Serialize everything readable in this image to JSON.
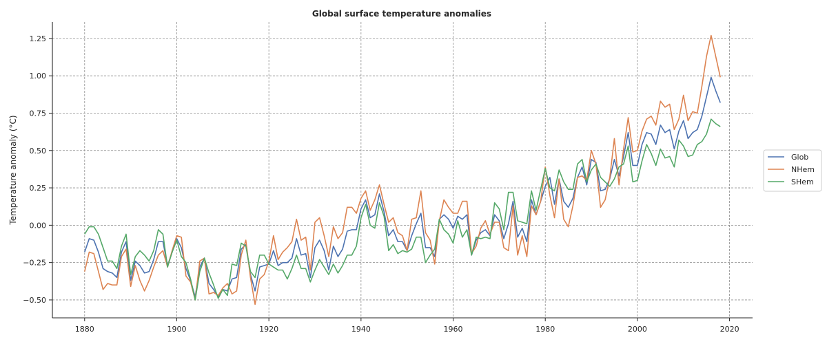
{
  "chart_data": {
    "type": "line",
    "title": "Global surface temperature anomalies",
    "xlabel": "",
    "ylabel": "Temperature anomaly (°C)",
    "xlim": [
      1873,
      2025
    ],
    "ylim": [
      -0.62,
      1.36
    ],
    "xticks": [
      1880,
      1900,
      1920,
      1940,
      1960,
      1980,
      2000,
      2020
    ],
    "yticks": [
      -0.5,
      -0.25,
      0.0,
      0.25,
      0.5,
      0.75,
      1.0,
      1.25
    ],
    "ytick_labels": [
      "−0.50",
      "−0.25",
      "0.00",
      "0.25",
      "0.50",
      "0.75",
      "1.00",
      "1.25"
    ],
    "grid": true,
    "legend_position": "right",
    "x_start": 1880,
    "series": [
      {
        "name": "Glob",
        "color": "#4c72b0",
        "values": [
          -0.18,
          -0.09,
          -0.1,
          -0.18,
          -0.29,
          -0.31,
          -0.32,
          -0.35,
          -0.18,
          -0.11,
          -0.37,
          -0.24,
          -0.27,
          -0.32,
          -0.31,
          -0.23,
          -0.11,
          -0.11,
          -0.27,
          -0.18,
          -0.09,
          -0.15,
          -0.29,
          -0.37,
          -0.48,
          -0.28,
          -0.22,
          -0.39,
          -0.43,
          -0.48,
          -0.43,
          -0.44,
          -0.36,
          -0.35,
          -0.16,
          -0.13,
          -0.33,
          -0.44,
          -0.28,
          -0.27,
          -0.26,
          -0.17,
          -0.27,
          -0.25,
          -0.25,
          -0.22,
          -0.09,
          -0.2,
          -0.19,
          -0.35,
          -0.15,
          -0.1,
          -0.17,
          -0.3,
          -0.14,
          -0.21,
          -0.16,
          -0.04,
          -0.03,
          -0.03,
          0.11,
          0.17,
          0.05,
          0.07,
          0.21,
          0.09,
          -0.07,
          -0.03,
          -0.11,
          -0.11,
          -0.17,
          -0.07,
          0.01,
          0.08,
          -0.15,
          -0.15,
          -0.21,
          0.04,
          0.07,
          0.04,
          -0.02,
          0.06,
          0.04,
          0.07,
          -0.2,
          -0.1,
          -0.05,
          -0.03,
          -0.07,
          0.07,
          0.03,
          -0.09,
          0.01,
          0.16,
          -0.08,
          -0.02,
          -0.11,
          0.17,
          0.07,
          0.16,
          0.26,
          0.32,
          0.14,
          0.31,
          0.16,
          0.12,
          0.18,
          0.32,
          0.39,
          0.27,
          0.44,
          0.42,
          0.23,
          0.24,
          0.31,
          0.44,
          0.33,
          0.46,
          0.62,
          0.4,
          0.4,
          0.54,
          0.62,
          0.61,
          0.54,
          0.67,
          0.62,
          0.64,
          0.51,
          0.63,
          0.7,
          0.58,
          0.62,
          0.64,
          0.73,
          0.86,
          0.99,
          0.9,
          0.82
        ]
      },
      {
        "name": "NHem",
        "color": "#dd8452",
        "values": [
          -0.31,
          -0.18,
          -0.19,
          -0.31,
          -0.43,
          -0.39,
          -0.4,
          -0.4,
          -0.21,
          -0.16,
          -0.41,
          -0.27,
          -0.37,
          -0.44,
          -0.37,
          -0.28,
          -0.2,
          -0.17,
          -0.28,
          -0.17,
          -0.07,
          -0.08,
          -0.34,
          -0.38,
          -0.5,
          -0.24,
          -0.22,
          -0.46,
          -0.45,
          -0.47,
          -0.42,
          -0.39,
          -0.46,
          -0.44,
          -0.2,
          -0.1,
          -0.35,
          -0.53,
          -0.36,
          -0.33,
          -0.24,
          -0.07,
          -0.23,
          -0.18,
          -0.15,
          -0.11,
          0.04,
          -0.1,
          -0.08,
          -0.3,
          0.02,
          0.05,
          -0.07,
          -0.21,
          -0.01,
          -0.09,
          -0.05,
          0.12,
          0.12,
          0.08,
          0.18,
          0.23,
          0.1,
          0.17,
          0.27,
          0.14,
          0.02,
          0.05,
          -0.05,
          -0.07,
          -0.17,
          0.04,
          0.05,
          0.23,
          -0.05,
          -0.1,
          -0.26,
          0.03,
          0.17,
          0.12,
          0.08,
          0.08,
          0.16,
          0.16,
          -0.19,
          -0.14,
          -0.02,
          0.03,
          -0.06,
          0.02,
          0.02,
          -0.15,
          -0.17,
          0.13,
          -0.2,
          -0.07,
          -0.21,
          0.13,
          0.07,
          0.16,
          0.39,
          0.2,
          0.05,
          0.31,
          0.04,
          -0.01,
          0.13,
          0.32,
          0.33,
          0.3,
          0.5,
          0.41,
          0.12,
          0.17,
          0.32,
          0.58,
          0.27,
          0.51,
          0.72,
          0.49,
          0.5,
          0.63,
          0.71,
          0.73,
          0.67,
          0.83,
          0.79,
          0.81,
          0.64,
          0.71,
          0.87,
          0.7,
          0.76,
          0.75,
          0.93,
          1.13,
          1.27,
          1.13,
          0.99
        ]
      },
      {
        "name": "SHem",
        "color": "#55a868",
        "values": [
          -0.06,
          -0.01,
          -0.01,
          -0.06,
          -0.15,
          -0.24,
          -0.24,
          -0.29,
          -0.14,
          -0.06,
          -0.33,
          -0.21,
          -0.17,
          -0.2,
          -0.24,
          -0.17,
          -0.03,
          -0.06,
          -0.28,
          -0.18,
          -0.1,
          -0.21,
          -0.25,
          -0.36,
          -0.5,
          -0.31,
          -0.22,
          -0.32,
          -0.4,
          -0.49,
          -0.43,
          -0.47,
          -0.26,
          -0.27,
          -0.12,
          -0.14,
          -0.31,
          -0.35,
          -0.2,
          -0.2,
          -0.26,
          -0.28,
          -0.3,
          -0.3,
          -0.36,
          -0.29,
          -0.2,
          -0.29,
          -0.29,
          -0.38,
          -0.3,
          -0.23,
          -0.28,
          -0.33,
          -0.26,
          -0.32,
          -0.27,
          -0.2,
          -0.2,
          -0.14,
          0.05,
          0.14,
          0.0,
          -0.02,
          0.15,
          0.06,
          -0.17,
          -0.13,
          -0.19,
          -0.17,
          -0.18,
          -0.16,
          -0.08,
          -0.08,
          -0.25,
          -0.2,
          -0.16,
          0.04,
          -0.03,
          -0.06,
          -0.12,
          0.03,
          -0.08,
          -0.03,
          -0.2,
          -0.08,
          -0.09,
          -0.08,
          -0.09,
          0.15,
          0.11,
          -0.03,
          0.22,
          0.22,
          0.03,
          0.02,
          0.01,
          0.23,
          0.1,
          0.24,
          0.38,
          0.25,
          0.23,
          0.37,
          0.29,
          0.24,
          0.24,
          0.41,
          0.44,
          0.29,
          0.37,
          0.41,
          0.32,
          0.29,
          0.26,
          0.31,
          0.39,
          0.41,
          0.53,
          0.29,
          0.3,
          0.43,
          0.54,
          0.48,
          0.4,
          0.51,
          0.45,
          0.46,
          0.39,
          0.57,
          0.53,
          0.46,
          0.47,
          0.54,
          0.56,
          0.61,
          0.71,
          0.68,
          0.66
        ]
      }
    ]
  }
}
